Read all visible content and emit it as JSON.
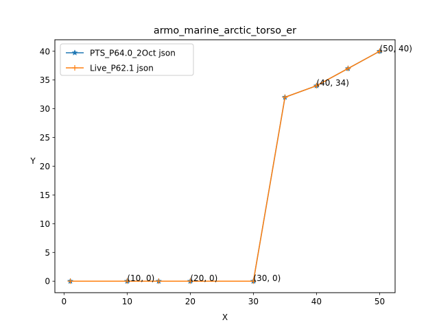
{
  "chart_data": {
    "type": "line",
    "title": "armo_marine_arctic_torso_er",
    "xlabel": "X",
    "ylabel": "Y",
    "xlim": [
      -1.45,
      52.45
    ],
    "ylim": [
      -2,
      42
    ],
    "x_ticks": [
      0,
      10,
      20,
      30,
      40,
      50
    ],
    "y_ticks": [
      0,
      5,
      10,
      15,
      20,
      25,
      30,
      35,
      40
    ],
    "grid": false,
    "legend_position": "upper-left",
    "series": [
      {
        "name": "PTS_P64.0_2Oct json",
        "color": "#1f77b4",
        "marker": "star",
        "x": [
          1,
          10,
          15,
          20,
          30,
          35,
          40,
          45,
          50
        ],
        "y": [
          0,
          0,
          0,
          0,
          0,
          32,
          34,
          37,
          40
        ]
      },
      {
        "name": "Live_P62.1 json",
        "color": "#ff7f0e",
        "marker": "plus",
        "x": [
          1,
          10,
          15,
          20,
          30,
          35,
          40,
          45,
          50
        ],
        "y": [
          0,
          0,
          0,
          0,
          0,
          32,
          34,
          37,
          40
        ]
      }
    ],
    "annotations": [
      {
        "x": 10,
        "y": 0,
        "text": "(10, 0)"
      },
      {
        "x": 20,
        "y": 0,
        "text": "(20, 0)"
      },
      {
        "x": 30,
        "y": 0,
        "text": "(30, 0)"
      },
      {
        "x": 40,
        "y": 34,
        "text": "(40, 34)"
      },
      {
        "x": 50,
        "y": 40,
        "text": "(50, 40)"
      }
    ]
  }
}
